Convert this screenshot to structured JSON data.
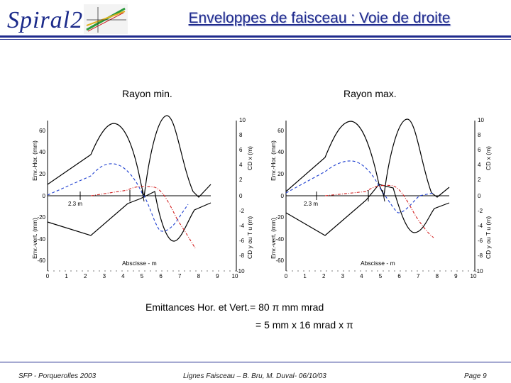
{
  "header": {
    "logo_text": "Spiral2",
    "title": "Enveloppes de faisceau : Voie de droite"
  },
  "panels": [
    {
      "label": "Rayon min.",
      "marker": "2.3 m"
    },
    {
      "label": "Rayon max.",
      "marker": "2.3 m"
    }
  ],
  "axes": {
    "y_left_top_label": "Env.-Hor. (mm)",
    "y_left_bottom_label": "Env.-vert. (mm)",
    "y_right_top_label": "CD x (m)",
    "y_right_bottom_label": "CD y ou T u (m)",
    "x_label": "Abscisse - m",
    "y_left_ticks": [
      "60",
      "40",
      "20",
      "0",
      "-20",
      "-40",
      "-60"
    ],
    "y_right_ticks": [
      "10",
      "8",
      "6",
      "4",
      "2",
      "0",
      "-2",
      "-4",
      "-6",
      "-8",
      "-10"
    ],
    "x_ticks": [
      "0",
      "1",
      "2",
      "3",
      "4",
      "5",
      "6",
      "7",
      "8",
      "9",
      "10"
    ]
  },
  "notes": {
    "emittance_line1": "Emittances Hor. et Vert.= 80 π mm mrad",
    "emittance_line2": "=  5 mm x 16 mrad x π"
  },
  "footer": {
    "left": "SFP - Porquerolles 2003",
    "center": "Lignes Faisceau – B. Bru, M. Duval- 06/10/03",
    "right": "Page 9"
  },
  "colors": {
    "title": "#1f2a8c",
    "horizontal_envelope": "#000000",
    "dispersion": "#1e3fd0",
    "longitudinal": "#d21f1f"
  }
}
